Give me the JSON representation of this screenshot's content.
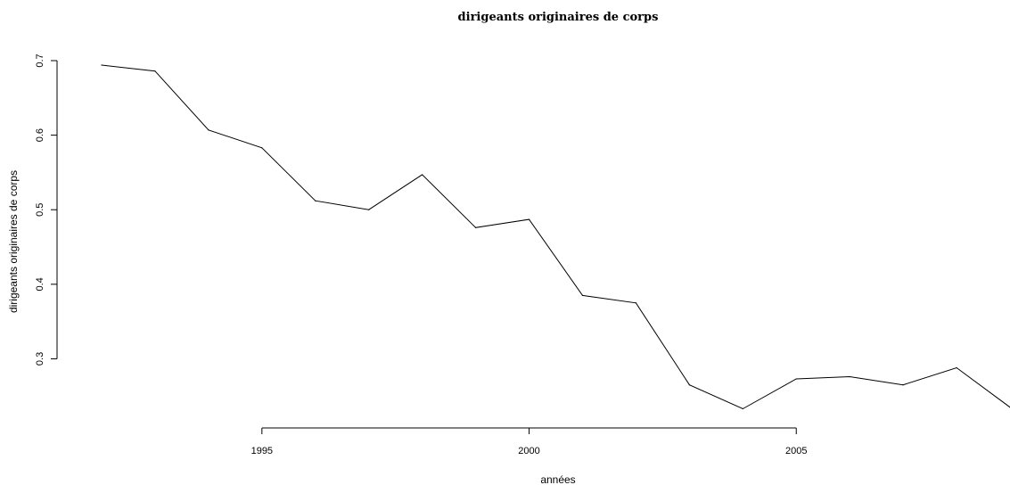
{
  "chart_data": {
    "type": "line",
    "title": "dirigeants originaires de corps",
    "xlabel": "années",
    "ylabel": "dirigeants originaires de corps",
    "xlim": [
      1992,
      2009
    ],
    "ylim": [
      0.23,
      0.7
    ],
    "x_ticks": [
      1995,
      2000,
      2005
    ],
    "y_ticks": [
      0.3,
      0.4,
      0.5,
      0.6,
      0.7
    ],
    "grid": false,
    "line_color": "#000000",
    "x": [
      1992,
      1993,
      1994,
      1995,
      1996,
      1997,
      1998,
      1999,
      2000,
      2001,
      2002,
      2003,
      2004,
      2005,
      2006,
      2007,
      2008,
      2009
    ],
    "y": [
      0.694,
      0.686,
      0.607,
      0.583,
      0.512,
      0.5,
      0.547,
      0.476,
      0.487,
      0.385,
      0.375,
      0.265,
      0.233,
      0.273,
      0.276,
      0.265,
      0.288,
      0.235
    ]
  }
}
